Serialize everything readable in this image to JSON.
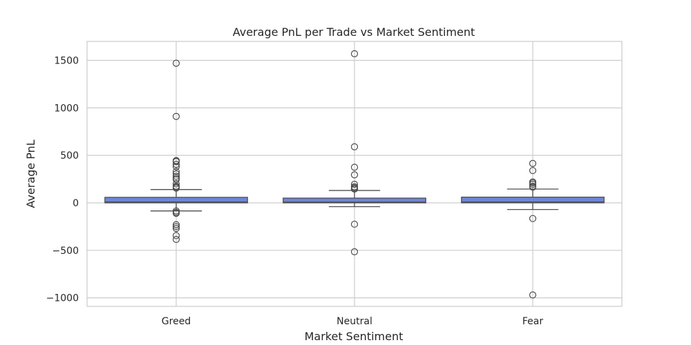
{
  "chart_data": {
    "type": "box",
    "title": "Average PnL per Trade vs Market Sentiment",
    "xlabel": "Market Sentiment",
    "ylabel": "Average PnL",
    "categories": [
      "Greed",
      "Neutral",
      "Fear"
    ],
    "ylim": [
      -1090,
      1700
    ],
    "yticks": [
      -1000,
      -500,
      0,
      500,
      1000,
      1500
    ],
    "ytick_labels": [
      "−1000",
      "−500",
      "0",
      "500",
      "1000",
      "1500"
    ],
    "grid": true,
    "box_color": "#6f86d6",
    "grid_color": "#cccccc",
    "boxes": [
      {
        "category": "Greed",
        "whisker_low": -85,
        "q1": 0,
        "median": 10,
        "q3": 58,
        "whisker_high": 140,
        "outliers": [
          1470,
          910,
          445,
          440,
          435,
          405,
          380,
          330,
          305,
          280,
          260,
          245,
          200,
          175,
          165,
          155,
          -85,
          -100,
          -110,
          -230,
          -250,
          -270,
          -345,
          -385
        ]
      },
      {
        "category": "Neutral",
        "whisker_low": -40,
        "q1": 0,
        "median": 8,
        "q3": 50,
        "whisker_high": 130,
        "outliers": [
          1570,
          590,
          375,
          295,
          195,
          170,
          160,
          150,
          145,
          -225,
          -515
        ]
      },
      {
        "category": "Fear",
        "whisker_low": -70,
        "q1": 0,
        "median": 10,
        "q3": 60,
        "whisker_high": 145,
        "outliers": [
          415,
          340,
          220,
          210,
          195,
          175,
          165,
          -165,
          -970
        ]
      }
    ]
  }
}
